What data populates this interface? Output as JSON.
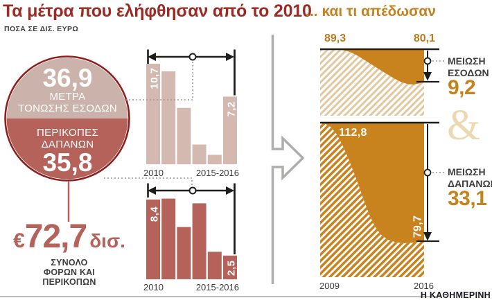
{
  "header": {
    "title": "Τα μέτρα που ελήφθησαν από το 2010",
    "subtitle": "ΠΟΣΑ ΣΕ ΔΙΣ. ΕΥΡΩ",
    "title_right": "... και τι απέδωσαν"
  },
  "donut": {
    "top_value": "36,9",
    "top_line1": "ΜΕΤΡΑ",
    "top_line2": "ΤΟΝΩΣΗΣ ΕΣΟΔΩΝ",
    "bottom_line1": "ΠΕΡΙΚΟΠΕΣ",
    "bottom_line2": "ΔΑΠΑΝΩΝ",
    "bottom_value": "35,8"
  },
  "total": {
    "currency": "€",
    "value": "72,7",
    "unit": "δισ.",
    "caption": [
      "ΣΥΝΟΛΟ",
      "ΦΟΡΩΝ ΚΑΙ",
      "ΠΕΡΙΚΟΠΩΝ"
    ]
  },
  "ampersand": "&",
  "branding": "Η ΚΑΘΗΜΕΡΙΝΗ",
  "chart_data": [
    {
      "id": "revenue-measures-bars",
      "type": "bar",
      "categories": [
        "2010",
        "2011",
        "2012",
        "2013",
        "2014",
        "2015-2016"
      ],
      "values": [
        10.7,
        9.9,
        6.0,
        2.1,
        1.0,
        7.2
      ],
      "first_bar_label": "10,7",
      "last_bar_label": "7,2",
      "x_tick_labels": [
        "2010",
        "2015-2016"
      ],
      "bar_color": "#d4b9b1"
    },
    {
      "id": "spending-cuts-bars",
      "type": "bar",
      "categories": [
        "2010",
        "2011",
        "2012",
        "2013",
        "2014",
        "2015-2016"
      ],
      "values": [
        8.4,
        8.5,
        5.5,
        8.0,
        2.9,
        2.5
      ],
      "first_bar_label": "8,4",
      "last_bar_label": "2,5",
      "x_tick_labels": [
        "2010",
        "2015-2016"
      ],
      "bar_color": "#b4625a"
    },
    {
      "id": "revenue-result-area",
      "type": "area",
      "x_tick_labels": [
        "2009",
        "2016"
      ],
      "years": [
        2009,
        2010,
        2011,
        2012,
        2013,
        2014,
        2015,
        2016
      ],
      "values_estimate": [
        89.3,
        89.0,
        87.0,
        84.5,
        82.3,
        80.6,
        79.6,
        80.1
      ],
      "start_label": "89,3",
      "end_label": "80,1",
      "reduction": {
        "lines": [
          "ΜΕΙΩΣΗ",
          "ΕΣΟΔΩΝ"
        ],
        "value": "9,2"
      }
    },
    {
      "id": "spending-result-area",
      "type": "area",
      "x_tick_labels": [
        "2009",
        "2016"
      ],
      "years": [
        2009,
        2010,
        2011,
        2012,
        2013,
        2014,
        2015,
        2016
      ],
      "values_estimate": [
        112.8,
        111.5,
        106.5,
        93.0,
        83.0,
        79.8,
        79.3,
        79.7
      ],
      "start_label": "112,8",
      "end_label": "79,7",
      "reduction": {
        "lines": [
          "ΜΕΙΩΣΗ",
          "ΔΑΠΑΝΩΝ"
        ],
        "value": "33,1"
      }
    }
  ],
  "colors": {
    "title_red": "#9b2b23",
    "orange": "#c8821e",
    "orange_label": "#bb7a1c",
    "tan_hatch": "#e1c89f",
    "amp_tan": "#ead9b3",
    "bar_light": "#d4b9b1",
    "bar_dark": "#b4625a",
    "donut_top": "#cbb3ab",
    "ring_red": "#8a2020",
    "gray_arrow": "#aeadac",
    "text_dark": "#3d3d3d"
  }
}
